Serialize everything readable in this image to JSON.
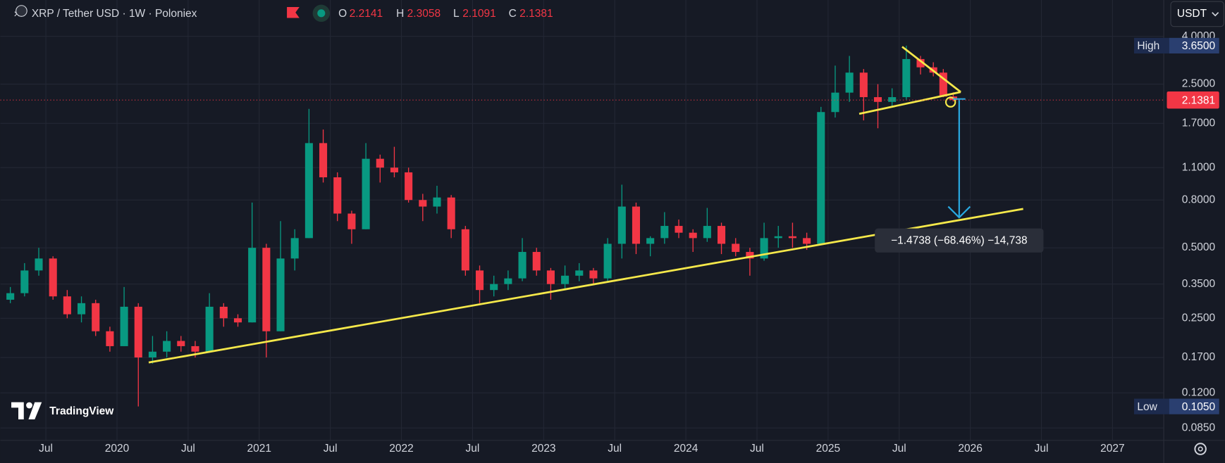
{
  "chart_data": {
    "type": "candlestick",
    "title": "XRP / Tether USD · 1W · Poloniex",
    "ohlc_labels": [
      "O",
      "H",
      "L",
      "C"
    ],
    "currency": "USDT",
    "watermark": "TradingView",
    "annotation": "−1.4738 (−68.46%) −14,738",
    "log_scale": true,
    "grid": true,
    "up_color": "#089981",
    "down_color": "#f23645",
    "xlim": [
      2019.18,
      2027.36
    ],
    "xticks": [
      {
        "value": 2019.5,
        "label": "Jul"
      },
      {
        "value": 2020,
        "label": "2020"
      },
      {
        "value": 2020.5,
        "label": "Jul"
      },
      {
        "value": 2021,
        "label": "2021"
      },
      {
        "value": 2021.5,
        "label": "Jul"
      },
      {
        "value": 2022,
        "label": "2022"
      },
      {
        "value": 2022.5,
        "label": "Jul"
      },
      {
        "value": 2023,
        "label": "2023"
      },
      {
        "value": 2023.5,
        "label": "Jul"
      },
      {
        "value": 2024,
        "label": "2024"
      },
      {
        "value": 2024.5,
        "label": "Jul"
      },
      {
        "value": 2025,
        "label": "2025"
      },
      {
        "value": 2025.5,
        "label": "Jul"
      },
      {
        "value": 2026,
        "label": "2026"
      },
      {
        "value": 2026.5,
        "label": "Jul"
      },
      {
        "value": 2027,
        "label": "2027"
      }
    ],
    "ylim": [
      0.0752,
      5.72
    ],
    "yticks": [
      {
        "value": 4,
        "label": "4.0000"
      },
      {
        "value": 2.5,
        "label": "2.5000"
      },
      {
        "value": 1.7,
        "label": "1.7000"
      },
      {
        "value": 1.1,
        "label": "1.1000"
      },
      {
        "value": 0.8,
        "label": "0.8000"
      },
      {
        "value": 0.5,
        "label": "0.5000"
      },
      {
        "value": 0.35,
        "label": "0.3500"
      },
      {
        "value": 0.25,
        "label": "0.2500"
      },
      {
        "value": 0.17,
        "label": "0.1700"
      },
      {
        "value": 0.12,
        "label": "0.1200"
      },
      {
        "value": 0.085,
        "label": "0.0850"
      }
    ],
    "high_marker": {
      "name": "High",
      "value": 3.65,
      "label": "3.6500"
    },
    "low_marker": {
      "name": "Low",
      "value": 0.105,
      "label": "0.1050"
    },
    "candles": {
      "x": [
        2019.25,
        2019.35,
        2019.45,
        2019.55,
        2019.65,
        2019.75,
        2019.85,
        2019.95,
        2020.05,
        2020.15,
        2020.25,
        2020.35,
        2020.45,
        2020.55,
        2020.65,
        2020.75,
        2020.85,
        2020.95,
        2021.05,
        2021.15,
        2021.25,
        2021.35,
        2021.45,
        2021.55,
        2021.65,
        2021.75,
        2021.85,
        2021.95,
        2022.05,
        2022.15,
        2022.25,
        2022.35,
        2022.45,
        2022.55,
        2022.65,
        2022.75,
        2022.85,
        2022.95,
        2023.05,
        2023.15,
        2023.25,
        2023.35,
        2023.45,
        2023.55,
        2023.65,
        2023.75,
        2023.85,
        2023.95,
        2024.05,
        2024.15,
        2024.25,
        2024.35,
        2024.45,
        2024.55,
        2024.65,
        2024.75,
        2024.85,
        2024.95,
        2025.05,
        2025.15,
        2025.25,
        2025.35,
        2025.45,
        2025.55,
        2025.65,
        2025.74,
        2025.81,
        2025.88
      ],
      "open": [
        0.3,
        0.32,
        0.4,
        0.45,
        0.31,
        0.26,
        0.29,
        0.22,
        0.19,
        0.28,
        0.17,
        0.18,
        0.2,
        0.19,
        0.18,
        0.28,
        0.25,
        0.24,
        0.5,
        0.22,
        0.45,
        0.55,
        1.4,
        1.0,
        0.7,
        0.6,
        1.2,
        1.1,
        1.05,
        0.8,
        0.75,
        0.82,
        0.6,
        0.4,
        0.33,
        0.35,
        0.37,
        0.48,
        0.4,
        0.35,
        0.38,
        0.4,
        0.37,
        0.52,
        0.75,
        0.52,
        0.55,
        0.62,
        0.58,
        0.55,
        0.62,
        0.52,
        0.48,
        0.45,
        0.55,
        0.56,
        0.55,
        0.52,
        1.9,
        2.3,
        2.8,
        2.2,
        2.1,
        2.2,
        3.2,
        2.95,
        2.8,
        2.2141
      ],
      "high": [
        0.34,
        0.43,
        0.5,
        0.46,
        0.33,
        0.31,
        0.3,
        0.23,
        0.34,
        0.29,
        0.21,
        0.22,
        0.21,
        0.2,
        0.32,
        0.29,
        0.26,
        0.78,
        0.52,
        0.65,
        0.6,
        1.96,
        1.6,
        1.05,
        0.72,
        1.4,
        1.25,
        1.35,
        1.1,
        0.85,
        0.92,
        0.84,
        0.62,
        0.42,
        0.38,
        0.4,
        0.55,
        0.5,
        0.41,
        0.42,
        0.43,
        0.41,
        0.55,
        0.93,
        0.78,
        0.56,
        0.71,
        0.66,
        0.6,
        0.74,
        0.64,
        0.55,
        0.5,
        0.64,
        0.62,
        0.64,
        0.58,
        2.0,
        3.0,
        3.3,
        2.9,
        2.5,
        2.4,
        3.65,
        3.3,
        3.1,
        2.9,
        2.3058
      ],
      "low": [
        0.29,
        0.31,
        0.38,
        0.3,
        0.25,
        0.24,
        0.21,
        0.18,
        0.19,
        0.105,
        0.16,
        0.17,
        0.18,
        0.17,
        0.18,
        0.23,
        0.23,
        0.24,
        0.17,
        0.22,
        0.4,
        0.55,
        0.95,
        0.65,
        0.52,
        0.6,
        0.95,
        1.0,
        0.78,
        0.65,
        0.7,
        0.55,
        0.38,
        0.29,
        0.31,
        0.33,
        0.36,
        0.38,
        0.3,
        0.33,
        0.36,
        0.35,
        0.36,
        0.45,
        0.47,
        0.46,
        0.52,
        0.55,
        0.48,
        0.53,
        0.47,
        0.46,
        0.38,
        0.44,
        0.5,
        0.5,
        0.49,
        0.52,
        1.8,
        2.1,
        1.75,
        1.62,
        2.0,
        2.15,
        2.75,
        2.7,
        2.2,
        2.1091
      ],
      "close": [
        0.32,
        0.4,
        0.45,
        0.31,
        0.26,
        0.29,
        0.22,
        0.19,
        0.28,
        0.17,
        0.18,
        0.2,
        0.19,
        0.18,
        0.28,
        0.25,
        0.24,
        0.5,
        0.22,
        0.45,
        0.55,
        1.4,
        1.0,
        0.7,
        0.6,
        1.2,
        1.1,
        1.05,
        0.8,
        0.75,
        0.82,
        0.6,
        0.4,
        0.33,
        0.35,
        0.37,
        0.48,
        0.4,
        0.35,
        0.38,
        0.4,
        0.37,
        0.52,
        0.75,
        0.52,
        0.55,
        0.62,
        0.58,
        0.55,
        0.62,
        0.52,
        0.48,
        0.45,
        0.55,
        0.56,
        0.55,
        0.52,
        1.9,
        2.3,
        2.8,
        2.2,
        2.1,
        2.2,
        3.2,
        2.95,
        2.8,
        2.2141,
        2.1381
      ]
    }
  }
}
